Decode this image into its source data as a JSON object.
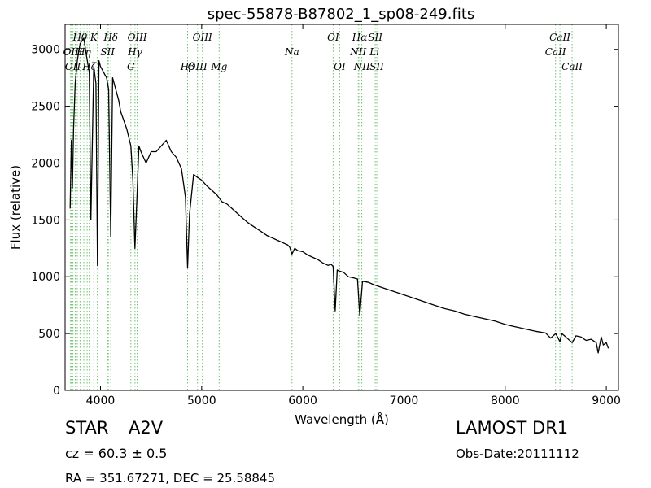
{
  "chart_data": {
    "type": "line",
    "title": "spec-55878-B87802_1_sp08-249.fits",
    "xlabel": "Wavelength (Å)",
    "ylabel": "Flux (relative)",
    "xlim": [
      3650,
      9120
    ],
    "ylim": [
      0,
      3220
    ],
    "xticks": [
      4000,
      5000,
      6000,
      7000,
      8000,
      9000
    ],
    "yticks": [
      0,
      500,
      1000,
      1500,
      2000,
      2500,
      3000
    ],
    "grid": false,
    "series": [
      {
        "color": "#000000",
        "x": [
          3700,
          3712,
          3722,
          3734,
          3750,
          3771,
          3798,
          3835,
          3860,
          3889,
          3905,
          3933,
          3955,
          3970,
          3985,
          4000,
          4030,
          4060,
          4080,
          4101,
          4120,
          4150,
          4180,
          4200,
          4220,
          4260,
          4300,
          4320,
          4340,
          4360,
          4380,
          4400,
          4450,
          4500,
          4550,
          4600,
          4650,
          4700,
          4750,
          4800,
          4840,
          4861,
          4880,
          4920,
          4950,
          5000,
          5050,
          5100,
          5150,
          5200,
          5250,
          5300,
          5350,
          5400,
          5450,
          5500,
          5550,
          5600,
          5650,
          5700,
          5750,
          5800,
          5850,
          5870,
          5893,
          5920,
          5950,
          6000,
          6050,
          6100,
          6150,
          6200,
          6250,
          6280,
          6300,
          6320,
          6340,
          6360,
          6400,
          6450,
          6500,
          6540,
          6563,
          6590,
          6650,
          6700,
          6800,
          6900,
          7000,
          7100,
          7200,
          7300,
          7400,
          7500,
          7600,
          7700,
          7800,
          7900,
          8000,
          8100,
          8200,
          8300,
          8400,
          8450,
          8500,
          8542,
          8560,
          8600,
          8662,
          8700,
          8750,
          8800,
          8850,
          8900,
          8920,
          8950,
          8970,
          9000,
          9020
        ],
        "y": [
          1600,
          2200,
          1780,
          2300,
          2700,
          2900,
          3050,
          3100,
          2950,
          2800,
          1500,
          2850,
          2700,
          1100,
          2900,
          2850,
          2800,
          2750,
          2650,
          1350,
          2750,
          2650,
          2550,
          2450,
          2400,
          2300,
          2150,
          1850,
          1250,
          1700,
          2150,
          2100,
          2000,
          2100,
          2100,
          2150,
          2200,
          2100,
          2050,
          1950,
          1700,
          1080,
          1550,
          1900,
          1880,
          1850,
          1800,
          1760,
          1720,
          1660,
          1640,
          1600,
          1560,
          1520,
          1480,
          1450,
          1420,
          1390,
          1360,
          1340,
          1320,
          1300,
          1280,
          1260,
          1200,
          1250,
          1230,
          1220,
          1190,
          1170,
          1150,
          1120,
          1100,
          1110,
          1090,
          700,
          1060,
          1050,
          1040,
          1000,
          990,
          980,
          660,
          960,
          950,
          930,
          900,
          870,
          840,
          810,
          780,
          750,
          720,
          700,
          670,
          650,
          630,
          610,
          580,
          560,
          540,
          520,
          505,
          460,
          500,
          430,
          500,
          470,
          420,
          480,
          470,
          440,
          450,
          420,
          330,
          470,
          400,
          420,
          370
        ]
      }
    ],
    "line_marks": {
      "color": "#6cc06c",
      "x": [
        3704,
        3712,
        3727,
        3750,
        3771,
        3798,
        3835,
        3868,
        3889,
        3934,
        3969,
        4069,
        4077,
        4102,
        4300,
        4341,
        4363,
        4861,
        4959,
        5007,
        5173,
        5893,
        6300,
        6364,
        6548,
        6563,
        6583,
        6716,
        6731,
        8498,
        8542,
        8662
      ]
    },
    "line_labels": [
      {
        "text": "Hθ",
        "wave": 3797,
        "row": 1
      },
      {
        "text": "K",
        "wave": 3934,
        "row": 1
      },
      {
        "text": "Hδ",
        "wave": 4102,
        "row": 1
      },
      {
        "text": "OIII",
        "wave": 4363,
        "row": 1
      },
      {
        "text": "OIII",
        "wave": 5007,
        "row": 1
      },
      {
        "text": "OI",
        "wave": 6300,
        "row": 1
      },
      {
        "text": "Hα",
        "wave": 6563,
        "row": 1
      },
      {
        "text": "SII",
        "wave": 6716,
        "row": 1
      },
      {
        "text": "CaII",
        "wave": 8542,
        "row": 1
      },
      {
        "text": "OIII",
        "wave": 3727,
        "row": 2
      },
      {
        "text": "Hη",
        "wave": 3835,
        "row": 2
      },
      {
        "text": "SII",
        "wave": 4069,
        "row": 2
      },
      {
        "text": "Hγ",
        "wave": 4341,
        "row": 2
      },
      {
        "text": "Na",
        "wave": 5893,
        "row": 2
      },
      {
        "text": "NII",
        "wave": 6548,
        "row": 2
      },
      {
        "text": "Li",
        "wave": 6708,
        "row": 2
      },
      {
        "text": "CaII",
        "wave": 8498,
        "row": 2
      },
      {
        "text": "OII",
        "wave": 3727,
        "row": 3
      },
      {
        "text": "Hζ",
        "wave": 3889,
        "row": 3
      },
      {
        "text": "G",
        "wave": 4300,
        "row": 3
      },
      {
        "text": "Hβ",
        "wave": 4861,
        "row": 3
      },
      {
        "text": "OIII",
        "wave": 4959,
        "row": 3
      },
      {
        "text": "Mg",
        "wave": 5173,
        "row": 3
      },
      {
        "text": "OI",
        "wave": 6364,
        "row": 3
      },
      {
        "text": "NII",
        "wave": 6583,
        "row": 3
      },
      {
        "text": "SII",
        "wave": 6731,
        "row": 3
      },
      {
        "text": "CaII",
        "wave": 8662,
        "row": 3
      }
    ]
  },
  "info": {
    "class": "STAR",
    "subclass": "A2V",
    "survey": "LAMOST DR1",
    "redshift": "cz = 60.3 ± 0.5",
    "obs_date": "Obs-Date:20111112",
    "coords": "RA = 351.67271, DEC = 25.58845"
  }
}
